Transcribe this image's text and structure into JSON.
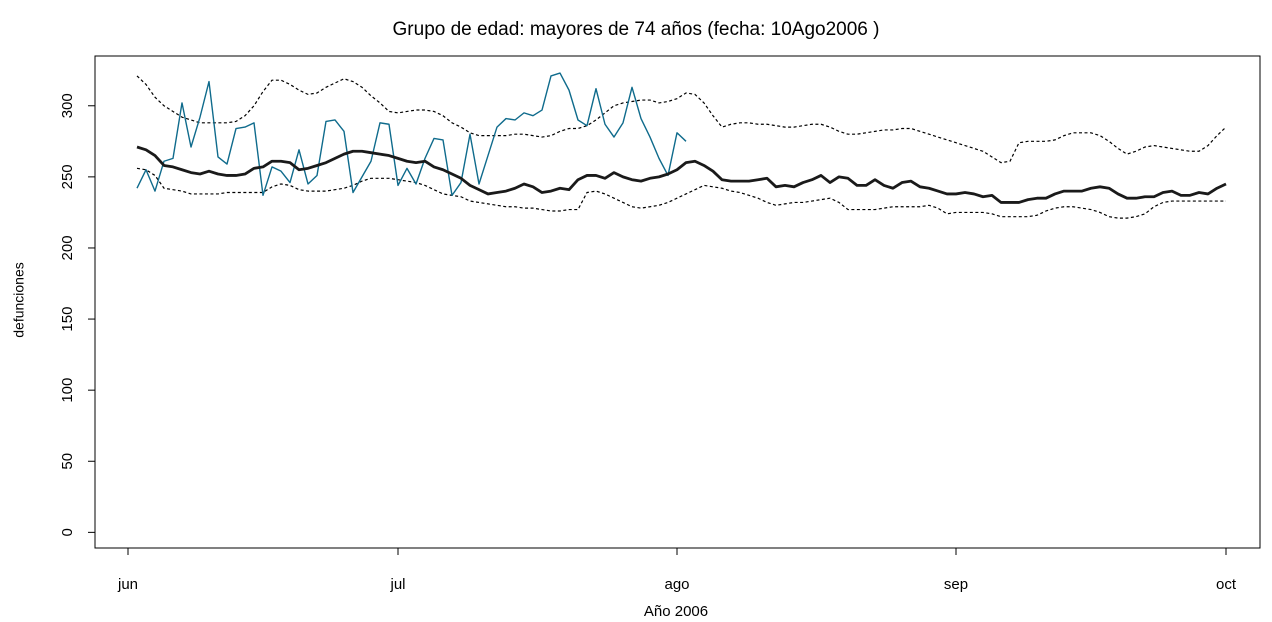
{
  "chart_data": {
    "type": "line",
    "title": "Grupo de edad: mayores de 74 años (fecha: 10Ago2006 )",
    "x_label": "Año 2006",
    "y_label": "defunciones",
    "categories": [
      "jun",
      null,
      null,
      null,
      null,
      null,
      null,
      null,
      null,
      null,
      null,
      null,
      null,
      null,
      null,
      null,
      null,
      null,
      null,
      null,
      null,
      null,
      null,
      null,
      null,
      null,
      null,
      null,
      null,
      null,
      "jul",
      null,
      null,
      null,
      null,
      null,
      null,
      null,
      null,
      null,
      null,
      null,
      null,
      null,
      null,
      null,
      null,
      null,
      null,
      null,
      null,
      null,
      null,
      null,
      null,
      null,
      null,
      null,
      null,
      null,
      null,
      "ago",
      null,
      null,
      null,
      null,
      null,
      null,
      null,
      null,
      null,
      null,
      null,
      null,
      null,
      null,
      null,
      null,
      null,
      null,
      null,
      null,
      null,
      null,
      null,
      null,
      null,
      null,
      null,
      null,
      null,
      null,
      "sep",
      null,
      null,
      null,
      null,
      null,
      null,
      null,
      null,
      null,
      null,
      null,
      null,
      null,
      null,
      null,
      null,
      null,
      null,
      null,
      null,
      null,
      null,
      null,
      null,
      null,
      null,
      null,
      null,
      null,
      "oct"
    ],
    "ylim": [
      -11,
      335
    ],
    "yticks": [
      0,
      50,
      100,
      150,
      200,
      250,
      300
    ],
    "grid": false,
    "series": [
      {
        "color": "#000000",
        "linestyle": "dotted",
        "values": [
          null,
          321,
          315,
          306,
          300,
          296,
          292,
          290,
          288,
          288,
          288,
          288,
          289,
          293,
          300,
          310,
          318,
          318,
          315,
          311,
          308,
          309,
          313,
          316,
          319,
          317,
          313,
          307,
          302,
          296,
          295,
          296,
          297,
          297,
          296,
          293,
          288,
          285,
          281,
          279,
          279,
          279,
          279,
          280,
          280,
          279,
          278,
          279,
          282,
          284,
          284,
          286,
          290,
          295,
          300,
          302,
          303,
          304,
          304,
          302,
          303,
          305,
          309,
          308,
          302,
          293,
          285,
          287,
          288,
          288,
          287,
          287,
          286,
          285,
          285,
          286,
          287,
          287,
          285,
          282,
          280,
          280,
          281,
          282,
          283,
          283,
          284,
          284,
          282,
          280,
          278,
          276,
          274,
          272,
          270,
          268,
          264,
          260,
          261,
          274,
          275,
          275,
          275,
          276,
          279,
          281,
          281,
          281,
          279,
          275,
          270,
          266,
          268,
          271,
          272,
          271,
          270,
          269,
          268,
          268,
          272,
          279,
          285
        ]
      },
      {
        "color": "#000000",
        "linestyle": "dotted",
        "values": [
          null,
          256,
          255,
          251,
          242,
          241,
          240,
          238,
          238,
          238,
          238,
          239,
          239,
          239,
          239,
          239,
          243,
          245,
          244,
          241,
          240,
          240,
          240,
          241,
          242,
          244,
          247,
          249,
          249,
          249,
          248,
          247,
          246,
          244,
          241,
          238,
          237,
          236,
          233,
          232,
          231,
          230,
          229,
          229,
          228,
          228,
          227,
          226,
          226,
          227,
          227,
          239,
          240,
          238,
          235,
          232,
          229,
          228,
          229,
          230,
          232,
          235,
          238,
          241,
          244,
          243,
          242,
          240,
          239,
          237,
          235,
          232,
          230,
          231,
          232,
          232,
          233,
          234,
          235,
          232,
          227,
          227,
          227,
          227,
          228,
          229,
          229,
          229,
          229,
          230,
          228,
          224,
          225,
          225,
          225,
          225,
          224,
          222,
          222,
          222,
          222,
          223,
          226,
          228,
          229,
          229,
          228,
          227,
          225,
          222,
          221,
          221,
          222,
          224,
          229,
          232,
          233,
          233,
          233,
          233,
          233,
          233,
          233
        ]
      },
      {
        "color": "#0f6b8c",
        "linestyle": "solid",
        "values": [
          null,
          242,
          255,
          240,
          261,
          263,
          302,
          271,
          292,
          317,
          264,
          259,
          284,
          285,
          288,
          237,
          257,
          254,
          246,
          269,
          245,
          251,
          289,
          290,
          282,
          239,
          250,
          261,
          288,
          287,
          244,
          256,
          245,
          263,
          277,
          276,
          237,
          246,
          280,
          245,
          265,
          285,
          291,
          290,
          295,
          293,
          297,
          321,
          323,
          311,
          290,
          286,
          312,
          287,
          278,
          288,
          313,
          291,
          278,
          263,
          251,
          281,
          275,
          null,
          null,
          null,
          null,
          null,
          null,
          null,
          null,
          null,
          null,
          null,
          null,
          null,
          null,
          null,
          null,
          null,
          null,
          null,
          null,
          null,
          null,
          null,
          null,
          null,
          null,
          null,
          null,
          null,
          null,
          null,
          null,
          null,
          null,
          null,
          null,
          null,
          null,
          null,
          null,
          null,
          null,
          null,
          null,
          null,
          null,
          null,
          null,
          null,
          null,
          null,
          null,
          null,
          null,
          null,
          null,
          null,
          null,
          null,
          null
        ]
      },
      {
        "color": "#1a1a1a",
        "linestyle": "bold",
        "values": [
          null,
          271,
          269,
          265,
          258,
          257,
          255,
          253,
          252,
          254,
          252,
          251,
          251,
          252,
          256,
          257,
          261,
          261,
          260,
          255,
          256,
          258,
          260,
          263,
          266,
          268,
          268,
          267,
          266,
          265,
          263,
          261,
          260,
          261,
          257,
          255,
          252,
          249,
          244,
          241,
          238,
          239,
          240,
          242,
          245,
          243,
          239,
          240,
          242,
          241,
          248,
          251,
          251,
          249,
          253,
          250,
          248,
          247,
          249,
          250,
          252,
          255,
          260,
          261,
          258,
          254,
          248,
          247,
          247,
          247,
          248,
          249,
          243,
          244,
          243,
          246,
          248,
          251,
          246,
          250,
          249,
          244,
          244,
          248,
          244,
          242,
          246,
          247,
          243,
          242,
          240,
          238,
          238,
          239,
          238,
          236,
          237,
          232,
          232,
          232,
          234,
          235,
          235,
          238,
          240,
          240,
          240,
          242,
          243,
          242,
          238,
          235,
          235,
          236,
          236,
          239,
          240,
          237,
          237,
          239,
          238,
          242,
          245
        ]
      }
    ]
  }
}
